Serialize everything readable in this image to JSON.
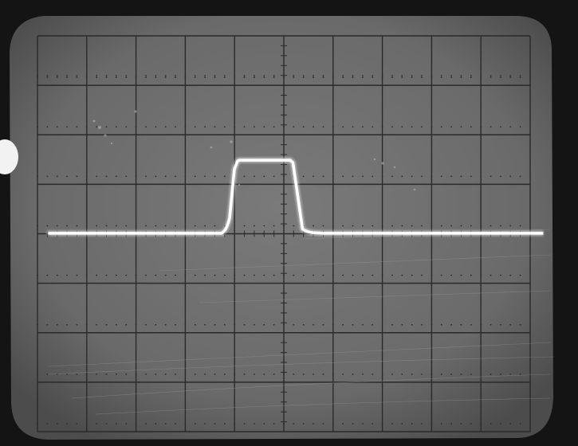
{
  "scene": {
    "subject": "oscilloscope-screen-photo",
    "palette": {
      "bezel": "#141414",
      "screen": "#6e6e6e",
      "screen_dark": "#4a4a4a",
      "graticule": "#2a2a2a",
      "trace": "#ffffff",
      "tab": "#f2f2f2"
    },
    "graticule": {
      "major_columns": 10,
      "major_rows": 8,
      "minor_ticks_per_division": 5
    },
    "trace": {
      "shape": "single-rectangular-pulse",
      "baseline_level_div": 0,
      "pulse_height_div": 1.5,
      "pulse_start_div": -1.1,
      "pulse_end_div": 0.25
    }
  }
}
